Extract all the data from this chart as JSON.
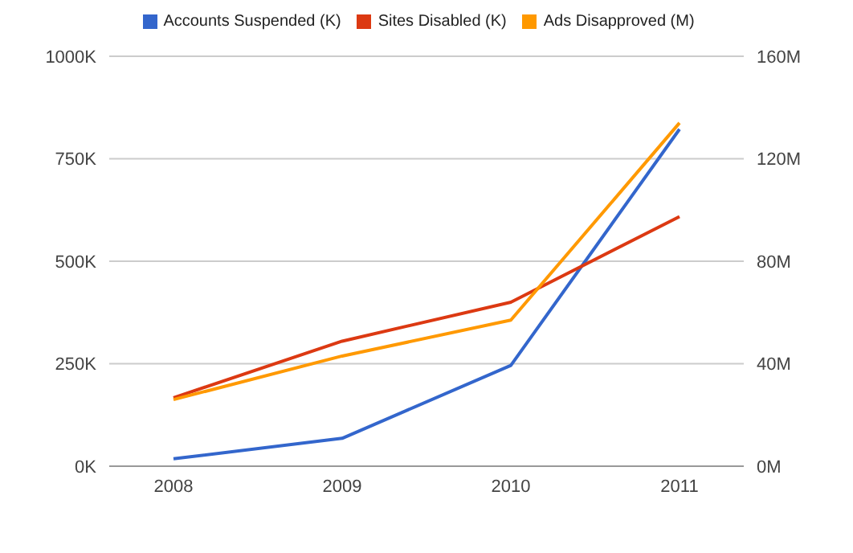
{
  "chart_data": {
    "type": "line",
    "categories": [
      "2008",
      "2009",
      "2010",
      "2011"
    ],
    "series": [
      {
        "name": "Accounts Suspended (K)",
        "color": "#3366cc",
        "values": [
          18,
          68,
          246,
          822
        ]
      },
      {
        "name": "Sites Disabled (K)",
        "color": "#dc3912",
        "values": [
          167,
          305,
          400,
          609
        ]
      },
      {
        "name": "Ads Disapproved (M)",
        "color": "#ff9900",
        "values": [
          26,
          43,
          57,
          134
        ],
        "axis": "y2"
      }
    ],
    "ylim": [
      0,
      1000
    ],
    "yticks": [
      {
        "value": 0,
        "label": "0K"
      },
      {
        "value": 250,
        "label": "250K"
      },
      {
        "value": 500,
        "label": "500K"
      },
      {
        "value": 750,
        "label": "750K"
      },
      {
        "value": 1000,
        "label": "1000K"
      }
    ],
    "y2lim": [
      0,
      160
    ],
    "y2ticks": [
      {
        "value": 0,
        "label": "0M"
      },
      {
        "value": 40,
        "label": "40M"
      },
      {
        "value": 80,
        "label": "80M"
      },
      {
        "value": 120,
        "label": "120M"
      },
      {
        "value": 160,
        "label": "160M"
      }
    ],
    "grid": "y",
    "legend": "top",
    "marker": "none",
    "line_style": "solid"
  }
}
